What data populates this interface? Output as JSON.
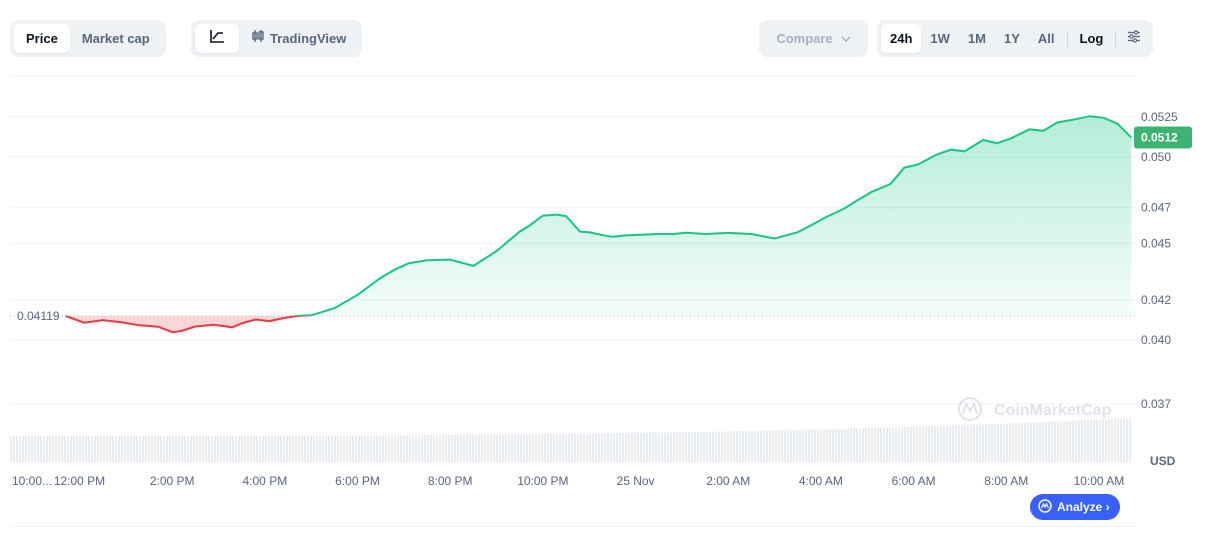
{
  "toolbar": {
    "type_tabs": [
      {
        "label": "Price",
        "active": true
      },
      {
        "label": "Market cap",
        "active": false
      }
    ],
    "view_tabs": {
      "tradingview_label": "TradingView",
      "line_icon": "line-chart-icon",
      "candle_icon": "candlestick-icon"
    },
    "compare_label": "Compare",
    "range_tabs": [
      {
        "label": "24h",
        "active": true
      },
      {
        "label": "1W",
        "active": false
      },
      {
        "label": "1M",
        "active": false
      },
      {
        "label": "1Y",
        "active": false
      },
      {
        "label": "All",
        "active": false
      }
    ],
    "log_label": "Log",
    "settings_icon": "sliders-icon"
  },
  "colors": {
    "up": "#16c784",
    "down": "#ea3943",
    "up_fill": "#d6f5e7",
    "down_fill": "#f6c9cc",
    "price_tag": "#3cb371",
    "analyze_bg": "#3861fb",
    "grid": "#eff2f5"
  },
  "watermark": "CoinMarketCap",
  "analyze_label": "Analyze ›",
  "chart_data": {
    "type": "area",
    "currency": "USD",
    "open_price_label": "0.04119",
    "current_price_label": "0.0512",
    "y_ticks": [
      "0.0525",
      "0.050",
      "0.047",
      "0.045",
      "0.042",
      "0.040",
      "0.037"
    ],
    "y_tick_values": [
      0.0525,
      0.05,
      0.047,
      0.045,
      0.042,
      0.04,
      0.037
    ],
    "x_ticks": [
      "10:00...",
      "12:00 PM",
      "2:00 PM",
      "4:00 PM",
      "6:00 PM",
      "8:00 PM",
      "10:00 PM",
      "25 Nov",
      "2:00 AM",
      "4:00 AM",
      "6:00 AM",
      "8:00 AM",
      "10:00 AM"
    ],
    "x_tick_hours": [
      0,
      1.5,
      3.5,
      5.5,
      7.5,
      9.5,
      11.5,
      13.5,
      15.5,
      17.5,
      19.5,
      21.5,
      23.5
    ],
    "open_price": 0.04119,
    "current_price": 0.0512,
    "x_range_hours": [
      0,
      24.3
    ],
    "y_log_scale": true,
    "grid": true,
    "series": [
      {
        "x_hours": [
          1.2,
          1.6,
          2.0,
          2.4,
          2.8,
          3.2,
          3.5,
          3.7,
          4.0,
          4.4,
          4.8,
          5.0,
          5.3,
          5.6,
          5.9,
          6.2,
          6.5,
          7.0,
          7.5,
          8.0,
          8.3,
          8.6,
          9.0,
          9.5,
          10.0,
          10.5,
          11.0,
          11.2,
          11.5,
          11.8,
          12.0,
          12.3,
          12.5,
          12.8,
          13.0,
          13.3,
          13.6,
          14.0,
          14.3,
          14.6,
          15.0,
          15.5,
          16.0,
          16.5,
          17.0,
          17.3,
          17.6,
          18.0,
          18.3,
          18.6,
          19.0,
          19.3,
          19.6,
          20.0,
          20.3,
          20.6,
          21.0,
          21.3,
          21.6,
          22.0,
          22.3,
          22.6,
          23.0,
          23.3,
          23.6,
          23.9,
          24.2
        ],
        "price": [
          0.04119,
          0.04085,
          0.04098,
          0.04087,
          0.04072,
          0.04065,
          0.04038,
          0.04044,
          0.04066,
          0.04075,
          0.04062,
          0.04082,
          0.04101,
          0.04093,
          0.04108,
          0.04119,
          0.04122,
          0.04158,
          0.04226,
          0.04315,
          0.04358,
          0.04392,
          0.04408,
          0.04412,
          0.04378,
          0.04458,
          0.04565,
          0.04597,
          0.04655,
          0.04661,
          0.04652,
          0.04565,
          0.04561,
          0.04545,
          0.04536,
          0.04544,
          0.04548,
          0.04552,
          0.04552,
          0.04559,
          0.04552,
          0.04558,
          0.04552,
          0.04527,
          0.04562,
          0.04602,
          0.04645,
          0.04695,
          0.04745,
          0.04792,
          0.04838,
          0.04935,
          0.04955,
          0.05015,
          0.05045,
          0.05035,
          0.05105,
          0.05085,
          0.05115,
          0.05172,
          0.05162,
          0.05215,
          0.05236,
          0.05255,
          0.05245,
          0.05207,
          0.0512
        ]
      }
    ]
  }
}
